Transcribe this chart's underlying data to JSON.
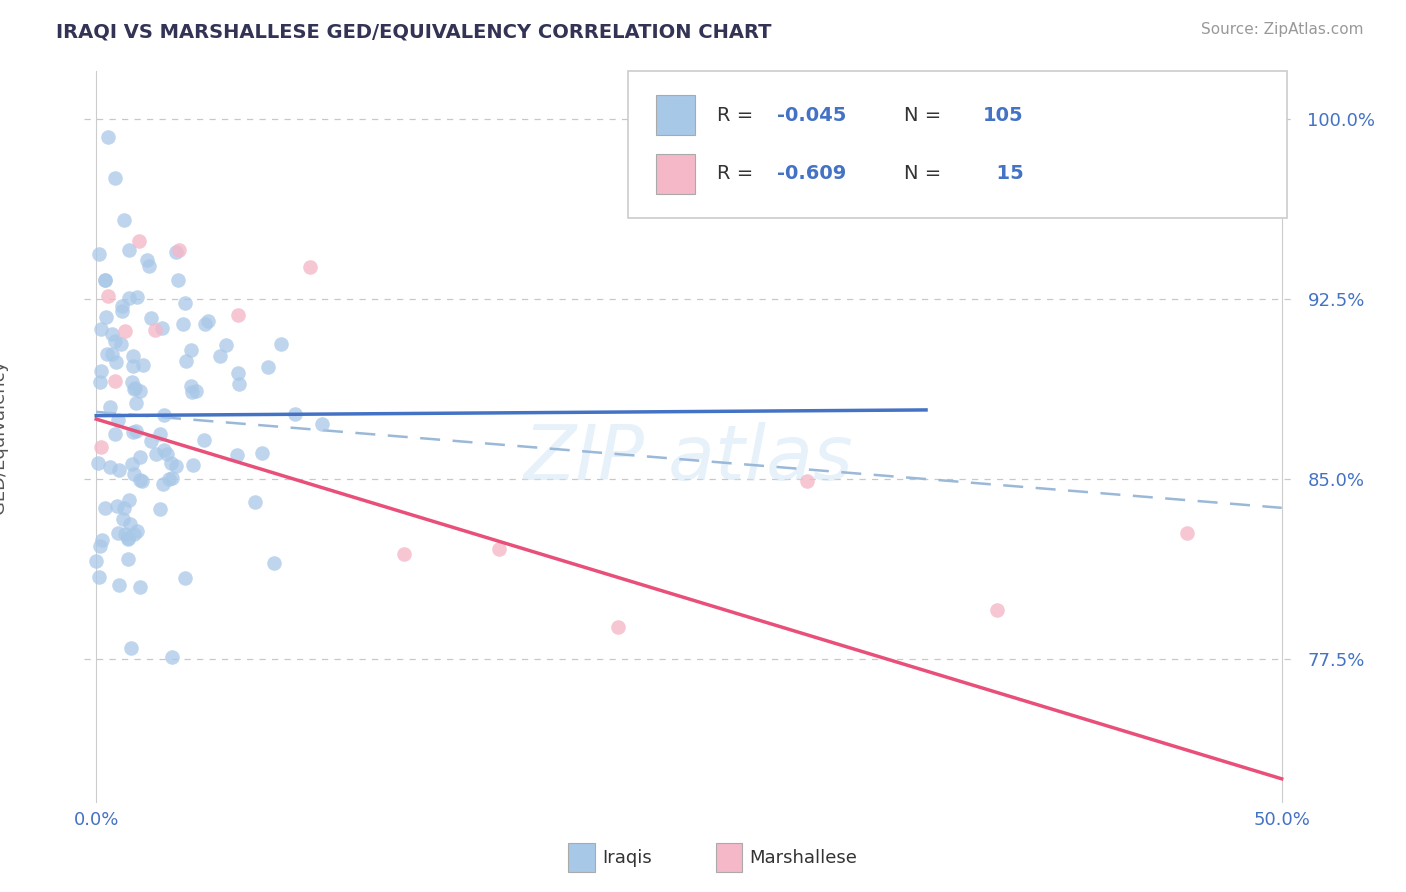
{
  "title": "IRAQI VS MARSHALLESE GED/EQUIVALENCY CORRELATION CHART",
  "source_text": "Source: ZipAtlas.com",
  "ylabel": "GED/Equivalency",
  "xlim": [
    -0.005,
    0.505
  ],
  "ylim": [
    0.715,
    1.02
  ],
  "xticks": [
    0.0,
    0.5
  ],
  "xticklabels": [
    "0.0%",
    "50.0%"
  ],
  "yticks": [
    0.775,
    0.85,
    0.925,
    1.0
  ],
  "yticklabels": [
    "77.5%",
    "85.0%",
    "92.5%",
    "100.0%"
  ],
  "tick_color": "#4472c4",
  "grid_color": "#c8c8c8",
  "background_color": "#ffffff",
  "iraqi_dot_color": "#a8c8e8",
  "marshallese_dot_color": "#f4b8c8",
  "iraqi_line_color": "#4472c4",
  "marshallese_line_color": "#e8507a",
  "dashed_line_color": "#9ab8d8",
  "legend_r1": "-0.045",
  "legend_n1": "105",
  "legend_r2": "-0.609",
  "legend_n2": "15",
  "iraqi_legend_color": "#a8c8e8",
  "marshallese_legend_color": "#f4b8c8",
  "watermark_color": "#d0e4f4"
}
